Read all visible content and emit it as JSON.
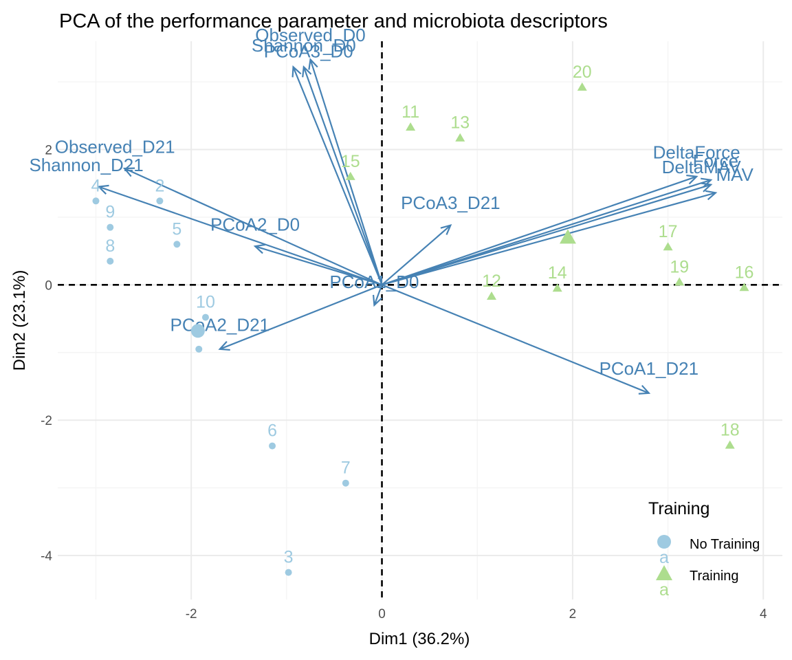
{
  "chart_data": {
    "type": "scatter",
    "title": "PCA of the performance parameter and microbiota descriptors",
    "xlabel": "Dim1 (36.2%)",
    "ylabel": "Dim2 (23.1%)",
    "xlim": [
      -3.4,
      4.2
    ],
    "ylim": [
      -4.65,
      3.6
    ],
    "x_ticks": [
      -2,
      0,
      2,
      4
    ],
    "y_ticks": [
      -4,
      -2,
      0,
      2
    ],
    "grid": true,
    "legend_position": "bottom-right",
    "legend": {
      "title": "Training",
      "items": [
        {
          "label": "No Training",
          "key_letter": "a",
          "shape": "circle",
          "color": "#9ECAE1"
        },
        {
          "label": "Training",
          "key_letter": "a",
          "shape": "triangle",
          "color": "#ADDD8E"
        }
      ]
    },
    "colors": {
      "no_training": "#9ECAE1",
      "training": "#ADDD8E",
      "variables": "#4682B4",
      "reference_lines": "#000000"
    },
    "groups": [
      {
        "name": "No Training",
        "points": [
          {
            "label": "4",
            "x": -3.0,
            "y": 1.24
          },
          {
            "label": "9",
            "x": -2.85,
            "y": 0.85
          },
          {
            "label": "8",
            "x": -2.85,
            "y": 0.35
          },
          {
            "label": "2",
            "x": -2.33,
            "y": 1.24
          },
          {
            "label": "5",
            "x": -2.15,
            "y": 0.6
          },
          {
            "label": "10",
            "x": -1.85,
            "y": -0.48
          },
          {
            "label": "",
            "x": -1.92,
            "y": -0.95
          },
          {
            "label": "6",
            "x": -1.15,
            "y": -2.38
          },
          {
            "label": "7",
            "x": -0.38,
            "y": -2.93
          },
          {
            "label": "3",
            "x": -0.98,
            "y": -4.25
          }
        ],
        "centroid": {
          "x": -1.93,
          "y": -0.68
        }
      },
      {
        "name": "Training",
        "points": [
          {
            "label": "20",
            "x": 2.1,
            "y": 2.92
          },
          {
            "label": "11",
            "x": 0.3,
            "y": 2.33
          },
          {
            "label": "13",
            "x": 0.82,
            "y": 2.17
          },
          {
            "label": "15",
            "x": -0.33,
            "y": 1.6
          },
          {
            "label": "17",
            "x": 3.0,
            "y": 0.56
          },
          {
            "label": "19",
            "x": 3.12,
            "y": 0.04
          },
          {
            "label": "16",
            "x": 3.8,
            "y": -0.04
          },
          {
            "label": "14",
            "x": 1.84,
            "y": -0.05
          },
          {
            "label": "12",
            "x": 1.15,
            "y": -0.17
          },
          {
            "label": "18",
            "x": 3.65,
            "y": -2.37
          }
        ],
        "centroid": {
          "x": 1.95,
          "y": 0.7
        }
      }
    ],
    "variables": [
      {
        "name": "Observed_D0",
        "x": -0.75,
        "y": 3.33,
        "lx": -0.75,
        "ly": 3.6
      },
      {
        "name": "Shannon_D0",
        "x": -0.82,
        "y": 3.22,
        "lx": -0.82,
        "ly": 3.45
      },
      {
        "name": "PCoA3_D0",
        "x": -0.93,
        "y": 3.22,
        "lx": -0.77,
        "ly": 3.36
      },
      {
        "name": "Observed_D21",
        "x": -2.7,
        "y": 1.72,
        "lx": -2.8,
        "ly": 1.95
      },
      {
        "name": "Shannon_D21",
        "x": -2.97,
        "y": 1.45,
        "lx": -3.1,
        "ly": 1.68
      },
      {
        "name": "PCoA2_D0",
        "x": -1.33,
        "y": 0.57,
        "lx": -1.33,
        "ly": 0.8
      },
      {
        "name": "PCoA1_D0",
        "x": -0.08,
        "y": -0.3,
        "lx": -0.08,
        "ly": -0.05
      },
      {
        "name": "PCoA2_D21",
        "x": -1.7,
        "y": -0.95,
        "lx": -1.7,
        "ly": -0.68
      },
      {
        "name": "PCoA3_D21",
        "x": 0.72,
        "y": 0.88,
        "lx": 0.72,
        "ly": 1.12
      },
      {
        "name": "PCoA1_D21",
        "x": 2.8,
        "y": -1.6,
        "lx": 2.8,
        "ly": -1.33
      },
      {
        "name": "DeltaForce",
        "x": 3.3,
        "y": 1.6,
        "lx": 3.3,
        "ly": 1.87
      },
      {
        "name": "Force",
        "x": 3.45,
        "y": 1.55,
        "lx": 3.5,
        "ly": 1.74
      },
      {
        "name": "DeltaMAV",
        "x": 3.45,
        "y": 1.48,
        "lx": 3.35,
        "ly": 1.65
      },
      {
        "name": "MAV",
        "x": 3.5,
        "y": 1.36,
        "lx": 3.7,
        "ly": 1.54
      }
    ]
  }
}
